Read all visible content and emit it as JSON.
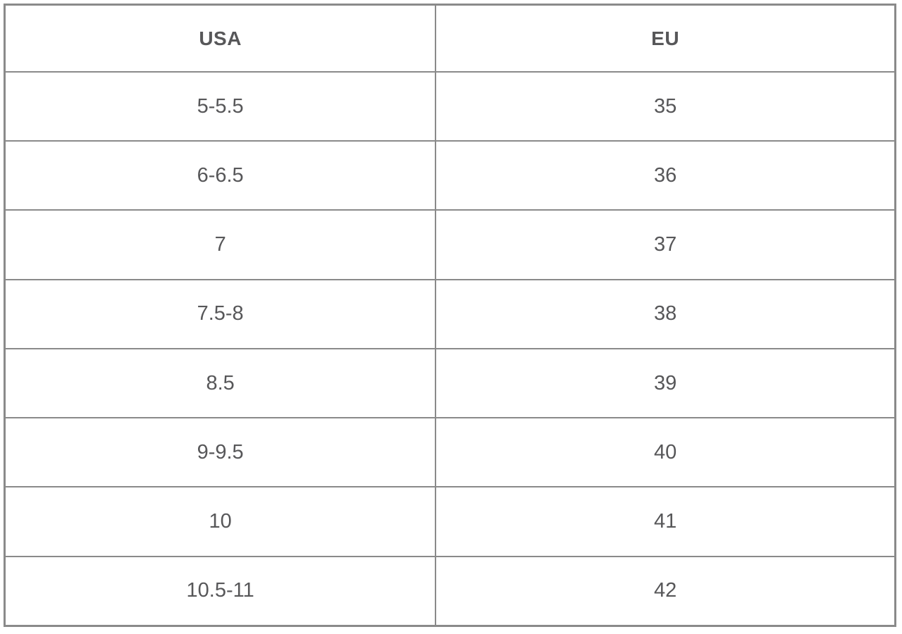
{
  "chart_data": {
    "type": "table",
    "columns": [
      "USA",
      "EU"
    ],
    "rows": [
      [
        "5-5.5",
        "35"
      ],
      [
        "6-6.5",
        "36"
      ],
      [
        "7",
        "37"
      ],
      [
        "7.5-8",
        "38"
      ],
      [
        "8.5",
        "39"
      ],
      [
        "9-9.5",
        "40"
      ],
      [
        "10",
        "41"
      ],
      [
        "10.5-11",
        "42"
      ]
    ],
    "layout": {
      "grid": true,
      "header_bold": true,
      "text_align": "center"
    }
  },
  "colors": {
    "text": "#575759",
    "border": "#8a8a8a",
    "background": "#ffffff"
  }
}
